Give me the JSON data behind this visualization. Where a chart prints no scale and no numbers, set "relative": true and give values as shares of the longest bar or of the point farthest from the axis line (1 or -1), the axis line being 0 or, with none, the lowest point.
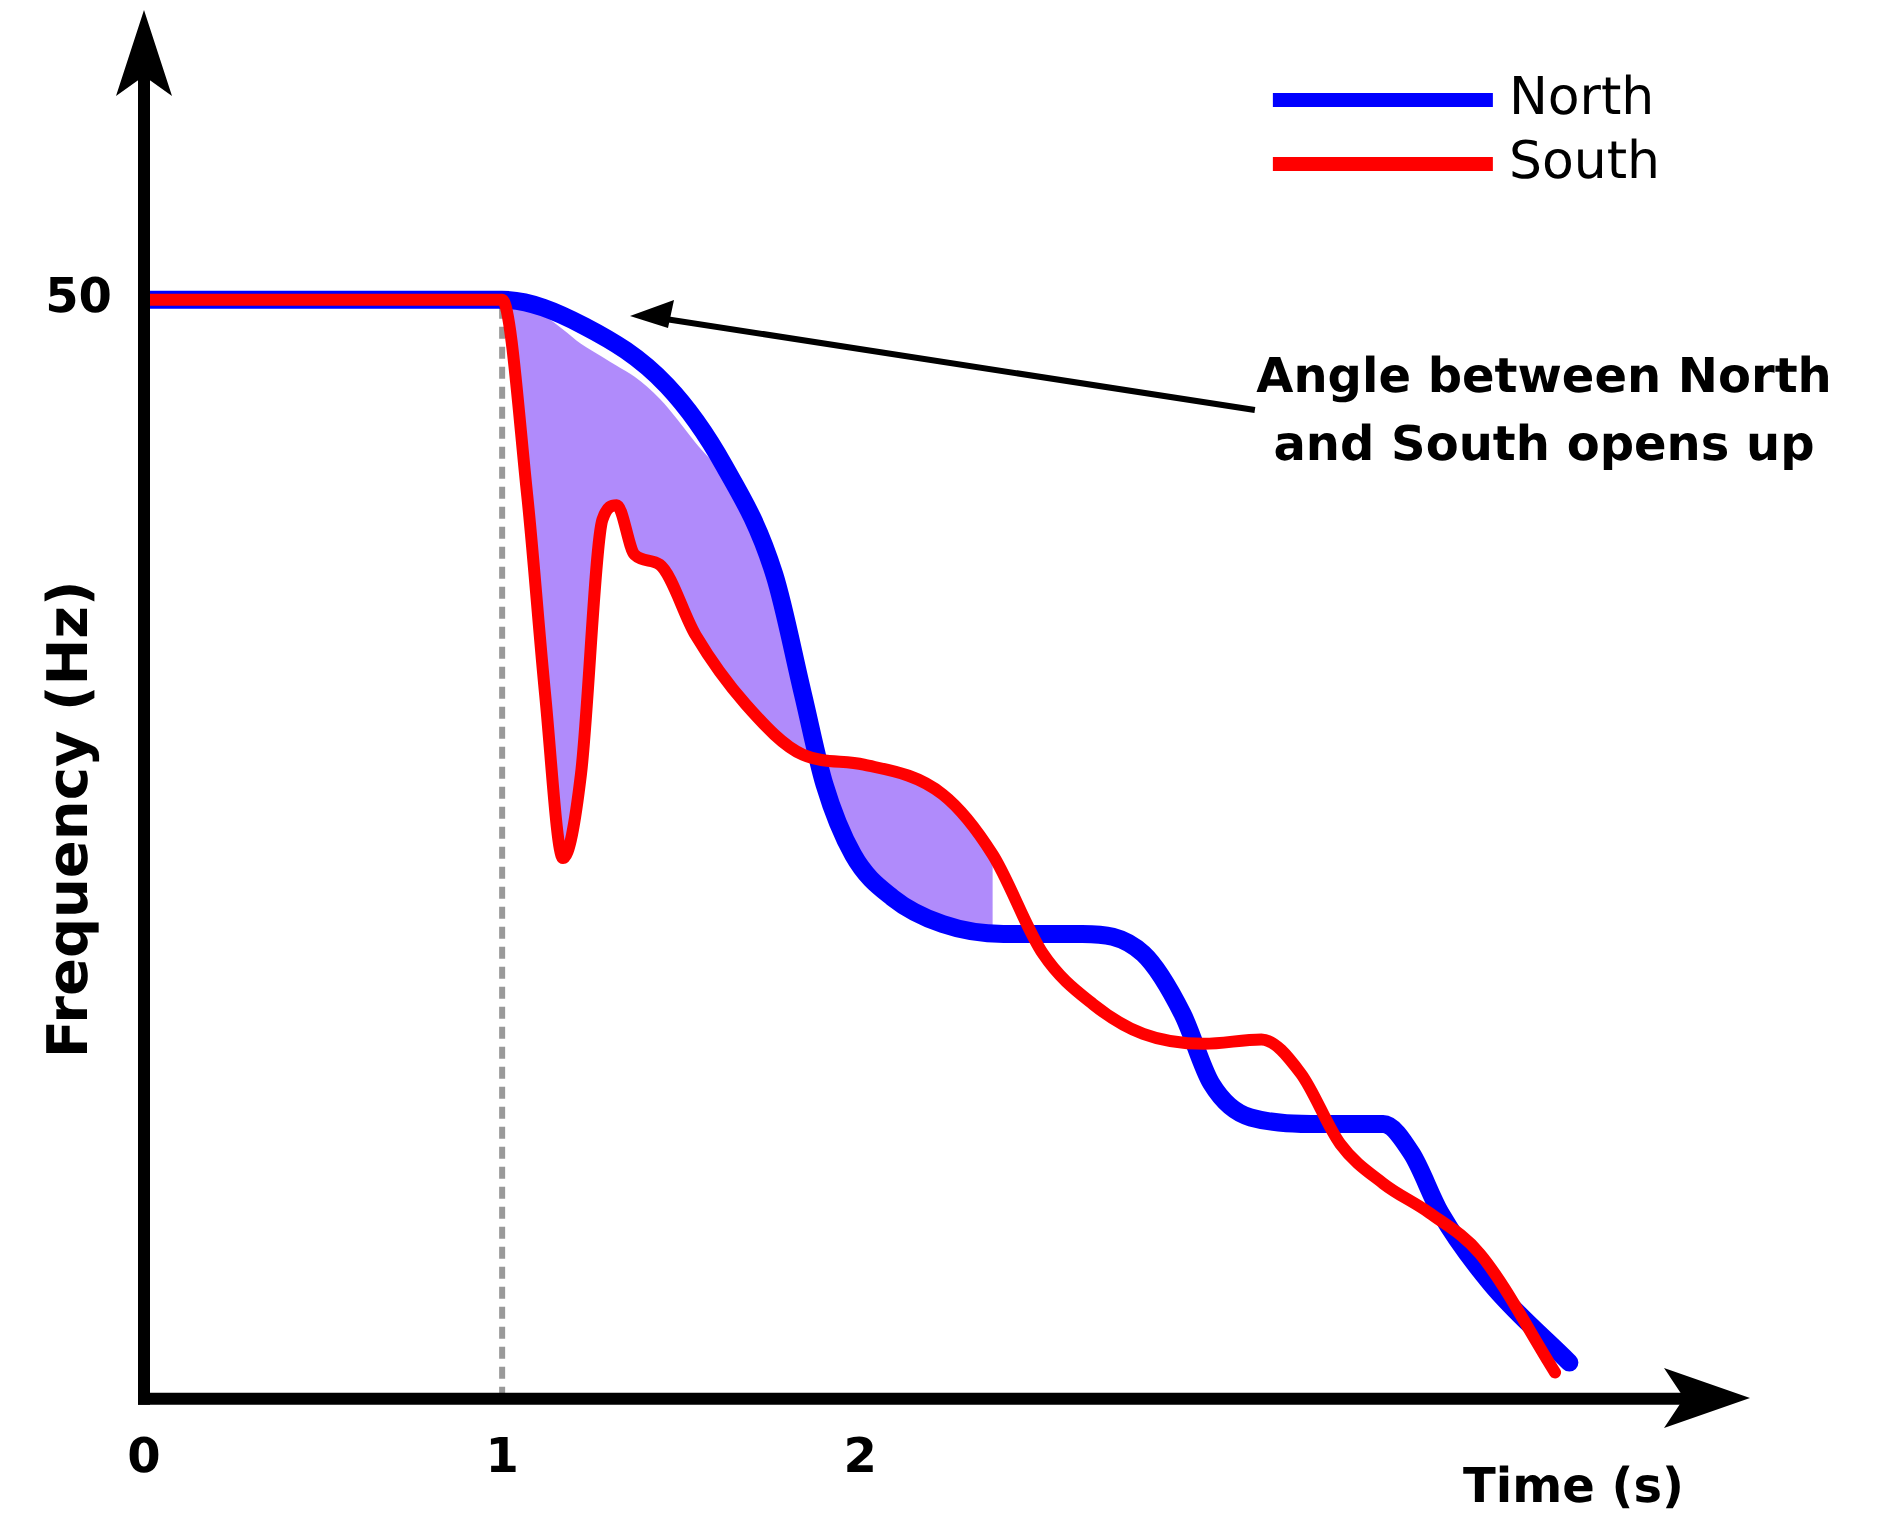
{
  "chart_data": {
    "type": "line",
    "xlabel": "Time (s)",
    "ylabel": "Frequency (Hz)",
    "relative": true,
    "xlim": [
      0,
      4.3
    ],
    "xticks": [
      0,
      1,
      2
    ],
    "grid": false,
    "legend": "top right",
    "marker": "none",
    "line_style": "solid",
    "series": [
      {
        "name": "North",
        "color": "#0000ff",
        "x": [
          0,
          1,
          1.23,
          1.46,
          1.62,
          1.76,
          1.84,
          1.9,
          1.98,
          2.09,
          2.23,
          2.4,
          2.62,
          2.79,
          2.9,
          2.98,
          3.09,
          3.29,
          3.46,
          3.54,
          3.62,
          3.76,
          3.98
        ],
        "values": [
          1,
          1,
          0.976,
          0.922,
          0.849,
          0.75,
          0.641,
          0.559,
          0.495,
          0.456,
          0.432,
          0.423,
          0.423,
          0.405,
          0.35,
          0.287,
          0.256,
          0.25,
          0.25,
          0.223,
          0.169,
          0.105,
          0.033
        ]
      },
      {
        "name": "South",
        "color": "#ff0000",
        "x": [
          0,
          1,
          1.07,
          1.12,
          1.17,
          1.22,
          1.28,
          1.32,
          1.37,
          1.44,
          1.54,
          1.68,
          1.84,
          2.01,
          2.23,
          2.37,
          2.51,
          2.65,
          2.79,
          2.96,
          3.12,
          3.23,
          3.34,
          3.46,
          3.59,
          3.73,
          3.94
        ],
        "values": [
          1,
          1,
          0.822,
          0.641,
          0.492,
          0.568,
          0.8,
          0.813,
          0.768,
          0.759,
          0.695,
          0.632,
          0.586,
          0.577,
          0.55,
          0.495,
          0.405,
          0.359,
          0.332,
          0.323,
          0.327,
          0.296,
          0.232,
          0.196,
          0.169,
          0.132,
          0.024
        ],
        "lower": [
          null,
          1,
          0.822,
          0.641,
          0.492,
          0.568,
          0.8,
          0.813,
          0.768,
          0.759,
          0.695,
          0.632,
          0.586,
          0.577,
          0.55,
          0.495,
          null,
          null,
          null,
          null,
          null,
          null,
          null,
          null,
          null,
          null,
          null
        ],
        "upper": [
          null,
          1,
          0.993,
          0.985,
          0.973,
          0.96,
          0.948,
          0.94,
          0.93,
          0.91,
          0.87,
          0.81,
          0.641,
          0.485,
          0.432,
          0.42,
          null,
          null,
          null,
          null,
          null,
          null,
          null,
          null,
          null,
          null,
          null
        ]
      }
    ],
    "ref_lines": [
      {
        "axis": "x",
        "value": 1,
        "color": "#999999",
        "line_style": "dashed"
      }
    ],
    "annotations": [
      {
        "text": "50",
        "x": 0,
        "y": 1
      },
      "Angle between North\nand South opens up"
    ]
  }
}
